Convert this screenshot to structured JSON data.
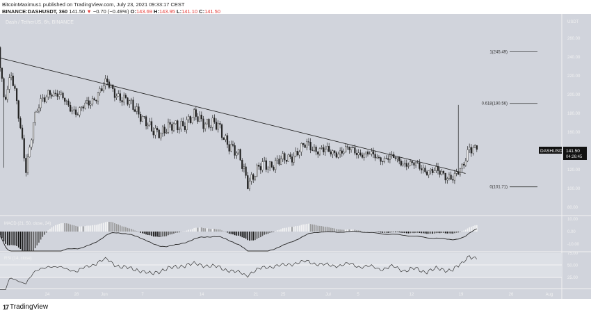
{
  "header": {
    "publisher_line": "BitcoinMaximus1 published on TradingView.com, July 23, 2021 09:33:17 CEST",
    "symbol": "BINANCE:DASHUSDT, 360",
    "last": "141.50",
    "change": "−0.70 (−0.49%)",
    "o_label": "O:",
    "o": "143.69",
    "h_label": "H:",
    "h": "143.95",
    "l_label": "L:",
    "l": "141.10",
    "c_label": "C:",
    "c": "141.50"
  },
  "pane_title": "Dash / TetherUS, 6h, BINANCE",
  "price_axis": {
    "unit": "USDT",
    "ticks": [
      "260.00",
      "240.00",
      "220.00",
      "200.00",
      "180.00",
      "160.00",
      "120.00",
      "100.00",
      "80.00"
    ]
  },
  "price_label": {
    "symbol": "DASHUSDT",
    "price": "141.50",
    "countdown": "04:26:45"
  },
  "fib_levels": [
    {
      "label": "1(245.49)",
      "value": 245.49
    },
    {
      "label": "0.618(190.56)",
      "value": 190.56
    },
    {
      "label": "0(101.71)",
      "value": 101.71
    }
  ],
  "macd": {
    "title": "MACD (21, 50, close, 24)",
    "ticks": [
      "10.00",
      "0.00",
      "-10.00"
    ]
  },
  "rsi": {
    "title": "RSI (14, close)",
    "ticks": [
      "75.00",
      "50.00",
      "25.00"
    ]
  },
  "time_axis": [
    "24",
    "28",
    "Jun",
    "7",
    "14",
    "21",
    "25",
    "Jul",
    "5",
    "12",
    "19",
    "26",
    "Aug"
  ],
  "colors": {
    "background": "#d1d4dc",
    "candle_up": "#f0f0f0",
    "candle_down": "#222222",
    "line": "#222222"
  },
  "brand": "TradingView",
  "chart_data": {
    "type": "candlestick",
    "title": "Dash / TetherUS, 6h, BINANCE",
    "ylim": [
      75,
      285
    ],
    "price_keypoints": [
      [
        "2021-05-19",
        265
      ],
      [
        "2021-05-20",
        200
      ],
      [
        "2021-05-21",
        222
      ],
      [
        "2021-05-23",
        125
      ],
      [
        "2021-05-24",
        170
      ],
      [
        "2021-05-26",
        205
      ],
      [
        "2021-05-28",
        195
      ],
      [
        "2021-05-30",
        180
      ],
      [
        "2021-06-01",
        195
      ],
      [
        "2021-06-03",
        212
      ],
      [
        "2021-06-05",
        195
      ],
      [
        "2021-06-07",
        185
      ],
      [
        "2021-06-09",
        160
      ],
      [
        "2021-06-12",
        165
      ],
      [
        "2021-06-15",
        176
      ],
      [
        "2021-06-18",
        165
      ],
      [
        "2021-06-21",
        130
      ],
      [
        "2021-06-22",
        108
      ],
      [
        "2021-06-24",
        124
      ],
      [
        "2021-06-27",
        130
      ],
      [
        "2021-06-30",
        146
      ],
      [
        "2021-07-03",
        138
      ],
      [
        "2021-07-06",
        141
      ],
      [
        "2021-07-09",
        134
      ],
      [
        "2021-07-12",
        131
      ],
      [
        "2021-07-15",
        123
      ],
      [
        "2021-07-18",
        116
      ],
      [
        "2021-07-20",
        112
      ],
      [
        "2021-07-21",
        120
      ],
      [
        "2021-07-22",
        146
      ],
      [
        "2021-07-23",
        141.5
      ]
    ],
    "spike": {
      "date": "2021-07-20",
      "high": 189
    },
    "trendline": {
      "from": [
        "2021-05-19",
        240
      ],
      "to": [
        "2021-07-21",
        116
      ]
    },
    "last_close": 141.5
  }
}
